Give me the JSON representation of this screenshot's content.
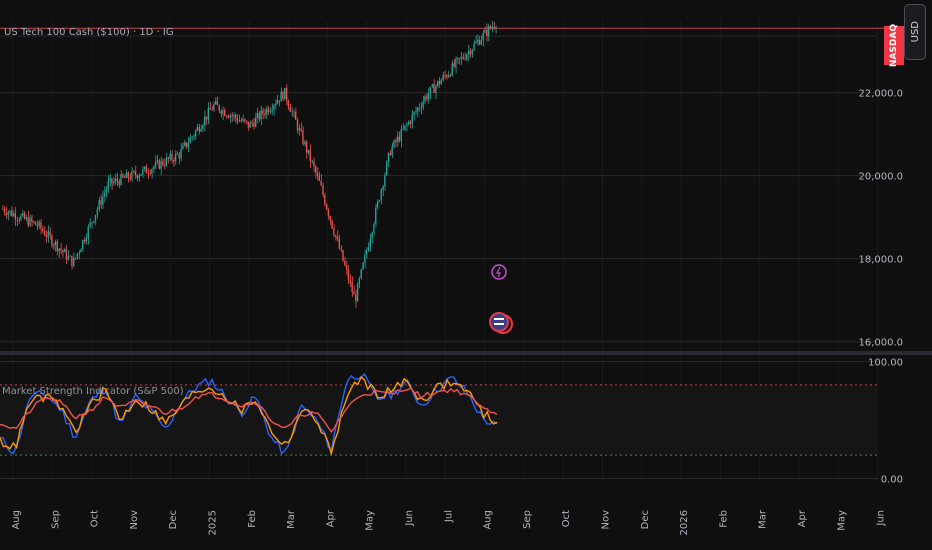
{
  "header": {
    "symbol_title": "US Tech 100 Cash ($100) · 1D · IG",
    "currency_label": "USD",
    "exchange_badge": "NASDAQ"
  },
  "indicator": {
    "title": "Market Strength Indicator (S&P 500)"
  },
  "colors": {
    "background": "#0f0f0f",
    "up": "#26a69a",
    "down": "#ef5350",
    "grid": "#2a2a2a",
    "price_line": "#c2404d",
    "badge": "#f23645",
    "series_blue": "#2962ff",
    "series_orange": "#ff9800",
    "series_red": "#ef5350",
    "upper_band": "#c2404d",
    "lower_band": "#3a8a3a",
    "events_icon": "#c64fd1",
    "flag_icon": "#e23b46"
  },
  "chart_data": [
    {
      "type": "candlestick",
      "title": "US Tech 100 Cash ($100) · 1D · IG",
      "x_axis": {
        "tick_labels": [
          "Aug",
          "Sep",
          "Oct",
          "Nov",
          "Dec",
          "2025",
          "Feb",
          "Mar",
          "Apr",
          "May",
          "Jun",
          "Jul",
          "Aug",
          "Sep",
          "Oct",
          "Nov",
          "Dec",
          "2026",
          "Feb",
          "Mar",
          "Apr",
          "May",
          "Jun"
        ]
      },
      "y_axis": {
        "tick_labels": [
          "22,000.0",
          "20,000.0",
          "18,000.0",
          "16,000.0"
        ],
        "tick_values": [
          22000,
          20000,
          18000,
          16000
        ],
        "range": [
          15800,
          23750
        ]
      },
      "close_series": {
        "description": "approximate daily closes read at monthly intervals",
        "points": [
          {
            "x": "Jul 2024",
            "y": 19200
          },
          {
            "x": "Aug 2024",
            "y": 18800
          },
          {
            "x": "Aug 2024 low",
            "y": 17900
          },
          {
            "x": "Sep 2024",
            "y": 19800
          },
          {
            "x": "Oct 2024",
            "y": 20100
          },
          {
            "x": "Nov 2024",
            "y": 20500
          },
          {
            "x": "Dec 2024",
            "y": 21700
          },
          {
            "x": "Jan 2025",
            "y": 21200
          },
          {
            "x": "Feb 2025",
            "y": 22000
          },
          {
            "x": "Mar 2025",
            "y": 19800
          },
          {
            "x": "Apr 2025 low",
            "y": 17000
          },
          {
            "x": "May 2025",
            "y": 20600
          },
          {
            "x": "Jun 2025",
            "y": 21900
          },
          {
            "x": "Jul 2025",
            "y": 22800
          },
          {
            "x": "Aug 2025",
            "y": 23700
          }
        ]
      },
      "last_price_line": 23550
    },
    {
      "type": "line",
      "title": "Market Strength Indicator (S&P 500)",
      "y_axis": {
        "tick_labels": [
          "100.00",
          "0.00"
        ],
        "tick_values": [
          100,
          0
        ],
        "range": [
          -3,
          103
        ]
      },
      "bands": {
        "upper": 80,
        "lower": 20
      },
      "series": [
        {
          "color": "#2962ff",
          "values": [
            34,
            22,
            70,
            72,
            60,
            35,
            66,
            78,
            45,
            70,
            58,
            42,
            65,
            78,
            84,
            70,
            56,
            70,
            35,
            20,
            62,
            50,
            25,
            84,
            90,
            68,
            72,
            82,
            62,
            76,
            86,
            74,
            52,
            44
          ]
        },
        {
          "color": "#ff9800",
          "values": [
            32,
            26,
            66,
            70,
            62,
            40,
            63,
            76,
            50,
            68,
            60,
            47,
            62,
            75,
            78,
            70,
            58,
            68,
            40,
            28,
            58,
            52,
            22,
            70,
            86,
            72,
            75,
            84,
            66,
            78,
            82,
            76,
            56,
            48
          ]
        },
        {
          "color": "#ef5350",
          "values": [
            48,
            42,
            58,
            70,
            65,
            52,
            58,
            70,
            60,
            66,
            62,
            56,
            60,
            70,
            72,
            68,
            62,
            66,
            50,
            42,
            55,
            56,
            40,
            60,
            72,
            74,
            72,
            78,
            70,
            74,
            76,
            72,
            60,
            56
          ]
        }
      ]
    }
  ]
}
